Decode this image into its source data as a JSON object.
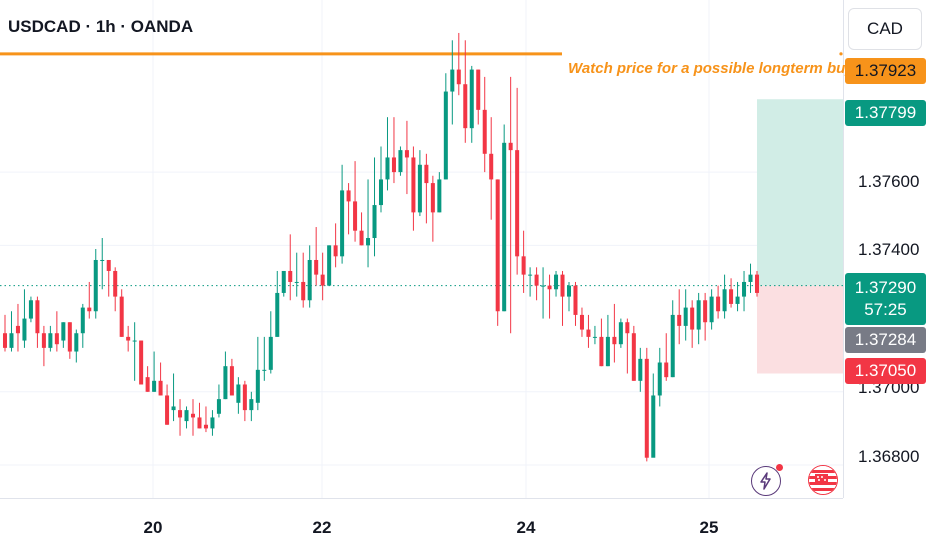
{
  "header": {
    "symbol_line": "USDCAD · 1h · OANDA",
    "currency_button": "CAD"
  },
  "annotation": {
    "text": "Watch price for a possible longterm buy"
  },
  "price_tags": {
    "orange": "1.37923",
    "target": "1.37799",
    "current": "1.37290",
    "countdown": "57:25",
    "gray": "1.37284",
    "stop": "1.37050"
  },
  "colors": {
    "up": "#089981",
    "down": "#f23645",
    "accent": "#f7931a",
    "target_zone": "#d1ede6",
    "stop_zone": "#fbdfe1",
    "gray_tag": "#787b86"
  },
  "chart_data": {
    "type": "candlestick",
    "title": "USDCAD · 1h · OANDA",
    "ylim": [
      1.3671,
      1.3807
    ],
    "yticks": [
      "1.36800",
      "1.37000",
      "1.37400",
      "1.37600"
    ],
    "xticks": [
      "20",
      "22",
      "24",
      "25"
    ],
    "horizontal_line": {
      "price": 1.37923,
      "label": "Watch price for a possible longterm buy"
    },
    "position": {
      "type": "long",
      "entry": 1.3729,
      "target": 1.37799,
      "stop": 1.3705
    },
    "last_price": 1.3729,
    "candles": [
      [
        1.3716,
        1.3721,
        1.3712,
        1.3711
      ],
      [
        1.3712,
        1.3722,
        1.3716,
        1.3711
      ],
      [
        1.3718,
        1.3724,
        1.3716,
        1.3711
      ],
      [
        1.3714,
        1.3728,
        1.372,
        1.3712
      ],
      [
        1.372,
        1.3726,
        1.3725,
        1.3719
      ],
      [
        1.3725,
        1.3726,
        1.3716,
        1.3712
      ],
      [
        1.3716,
        1.3718,
        1.3712,
        1.3707
      ],
      [
        1.3712,
        1.3718,
        1.3716,
        1.3711
      ],
      [
        1.3716,
        1.3722,
        1.3713,
        1.3711
      ],
      [
        1.3714,
        1.3719,
        1.3719,
        1.3712
      ],
      [
        1.3719,
        1.3719,
        1.3711,
        1.3709
      ],
      [
        1.3711,
        1.3717,
        1.3716,
        1.3708
      ],
      [
        1.3716,
        1.3724,
        1.3723,
        1.3712
      ],
      [
        1.3723,
        1.373,
        1.3722,
        1.372
      ],
      [
        1.3722,
        1.3739,
        1.3736,
        1.372
      ],
      [
        1.3736,
        1.3742,
        1.3736,
        1.3728
      ],
      [
        1.3736,
        1.3736,
        1.3733,
        1.3726
      ],
      [
        1.3733,
        1.3734,
        1.3726,
        1.3722
      ],
      [
        1.3726,
        1.3728,
        1.3715,
        1.3715
      ],
      [
        1.3715,
        1.3718,
        1.3714,
        1.3711
      ],
      [
        1.3714,
        1.3719,
        1.3714,
        1.3703
      ],
      [
        1.3714,
        1.3714,
        1.3702,
        1.3702
      ],
      [
        1.3704,
        1.3707,
        1.37,
        1.37
      ],
      [
        1.37,
        1.3711,
        1.3703,
        1.37
      ],
      [
        1.3703,
        1.3708,
        1.3699,
        1.3699
      ],
      [
        1.3699,
        1.3702,
        1.3691,
        1.3691
      ],
      [
        1.3695,
        1.3705,
        1.3696,
        1.3692
      ],
      [
        1.3695,
        1.3698,
        1.3693,
        1.3688
      ],
      [
        1.3692,
        1.3696,
        1.3695,
        1.369
      ],
      [
        1.3694,
        1.3698,
        1.3693,
        1.3688
      ],
      [
        1.3693,
        1.3697,
        1.369,
        1.369
      ],
      [
        1.3691,
        1.3696,
        1.369,
        1.3689
      ],
      [
        1.369,
        1.3695,
        1.3693,
        1.3688
      ],
      [
        1.3694,
        1.3702,
        1.3698,
        1.3693
      ],
      [
        1.3698,
        1.3711,
        1.3707,
        1.3698
      ],
      [
        1.3707,
        1.3709,
        1.3699,
        1.3699
      ],
      [
        1.3697,
        1.3704,
        1.3702,
        1.3694
      ],
      [
        1.3702,
        1.3703,
        1.3695,
        1.3692
      ],
      [
        1.3695,
        1.37,
        1.3698,
        1.3692
      ],
      [
        1.3697,
        1.3715,
        1.3706,
        1.3695
      ],
      [
        1.3706,
        1.3715,
        1.3706,
        1.3703
      ],
      [
        1.3706,
        1.3722,
        1.3715,
        1.3705
      ],
      [
        1.3715,
        1.3733,
        1.3727,
        1.3715
      ],
      [
        1.3727,
        1.3733,
        1.3733,
        1.3726
      ],
      [
        1.3733,
        1.3743,
        1.373,
        1.3725
      ],
      [
        1.373,
        1.3738,
        1.373,
        1.3726
      ],
      [
        1.373,
        1.3738,
        1.3725,
        1.3723
      ],
      [
        1.3725,
        1.374,
        1.3736,
        1.3723
      ],
      [
        1.3736,
        1.3745,
        1.3732,
        1.3729
      ],
      [
        1.3732,
        1.3738,
        1.3729,
        1.3725
      ],
      [
        1.3729,
        1.374,
        1.374,
        1.3729
      ],
      [
        1.374,
        1.3746,
        1.3737,
        1.3734
      ],
      [
        1.3737,
        1.3762,
        1.3755,
        1.3735
      ],
      [
        1.3755,
        1.3757,
        1.3752,
        1.3743
      ],
      [
        1.3752,
        1.3763,
        1.3744,
        1.3741
      ],
      [
        1.3744,
        1.3749,
        1.374,
        1.374
      ],
      [
        1.374,
        1.3758,
        1.3742,
        1.3734
      ],
      [
        1.3742,
        1.3764,
        1.3751,
        1.3737
      ],
      [
        1.3751,
        1.3767,
        1.3758,
        1.3749
      ],
      [
        1.3758,
        1.3775,
        1.3764,
        1.3755
      ],
      [
        1.3764,
        1.3775,
        1.376,
        1.3757
      ],
      [
        1.376,
        1.3767,
        1.3766,
        1.3759
      ],
      [
        1.3766,
        1.3774,
        1.3764,
        1.3754
      ],
      [
        1.3764,
        1.3767,
        1.3749,
        1.3744
      ],
      [
        1.3749,
        1.3766,
        1.3762,
        1.3748
      ],
      [
        1.3762,
        1.3765,
        1.3757,
        1.3746
      ],
      [
        1.3757,
        1.3759,
        1.3749,
        1.3741
      ],
      [
        1.3749,
        1.376,
        1.3758,
        1.3749
      ],
      [
        1.3758,
        1.3787,
        1.3782,
        1.3758
      ],
      [
        1.3782,
        1.3796,
        1.3788,
        1.3773
      ],
      [
        1.3788,
        1.3798,
        1.3784,
        1.3781
      ],
      [
        1.3784,
        1.3796,
        1.3772,
        1.3768
      ],
      [
        1.3772,
        1.3789,
        1.3788,
        1.3768
      ],
      [
        1.3788,
        1.3788,
        1.3777,
        1.3773
      ],
      [
        1.3777,
        1.3786,
        1.3765,
        1.376
      ],
      [
        1.3765,
        1.3775,
        1.3758,
        1.3747
      ],
      [
        1.3758,
        1.3758,
        1.3722,
        1.3718
      ],
      [
        1.3722,
        1.3773,
        1.3768,
        1.3722
      ],
      [
        1.3768,
        1.3786,
        1.3766,
        1.3716
      ],
      [
        1.3766,
        1.3783,
        1.3737,
        1.3732
      ],
      [
        1.3737,
        1.3744,
        1.3732,
        1.3727
      ],
      [
        1.3732,
        1.3734,
        1.3732,
        1.3726
      ],
      [
        1.3732,
        1.3734,
        1.3729,
        1.3725
      ],
      [
        1.3729,
        1.3734,
        1.3729,
        1.372
      ],
      [
        1.3729,
        1.3732,
        1.3728,
        1.372
      ],
      [
        1.3728,
        1.3733,
        1.3732,
        1.3726
      ],
      [
        1.3732,
        1.3733,
        1.3726,
        1.3718
      ],
      [
        1.3726,
        1.373,
        1.3729,
        1.3722
      ],
      [
        1.3729,
        1.373,
        1.3721,
        1.3718
      ],
      [
        1.3721,
        1.3723,
        1.3717,
        1.3715
      ],
      [
        1.3717,
        1.3721,
        1.3715,
        1.3712
      ],
      [
        1.3715,
        1.3718,
        1.3715,
        1.3713
      ],
      [
        1.3715,
        1.372,
        1.3707,
        1.3707
      ],
      [
        1.3707,
        1.3721,
        1.3715,
        1.3707
      ],
      [
        1.3715,
        1.3724,
        1.3713,
        1.3708
      ],
      [
        1.3713,
        1.372,
        1.3719,
        1.3712
      ],
      [
        1.3719,
        1.372,
        1.3716,
        1.3705
      ],
      [
        1.3716,
        1.3718,
        1.3703,
        1.3703
      ],
      [
        1.3703,
        1.3712,
        1.3709,
        1.37
      ],
      [
        1.3709,
        1.3712,
        1.3682,
        1.3681
      ],
      [
        1.3682,
        1.3705,
        1.3699,
        1.3692
      ],
      [
        1.3699,
        1.3712,
        1.3708,
        1.3696
      ],
      [
        1.3708,
        1.3716,
        1.3704,
        1.3703
      ],
      [
        1.3704,
        1.3725,
        1.3721,
        1.3704
      ],
      [
        1.3721,
        1.3728,
        1.3718,
        1.3713
      ],
      [
        1.3718,
        1.3728,
        1.3723,
        1.3714
      ],
      [
        1.3723,
        1.3725,
        1.3717,
        1.3712
      ],
      [
        1.3717,
        1.3727,
        1.3725,
        1.3713
      ],
      [
        1.3725,
        1.3727,
        1.3719,
        1.3714
      ],
      [
        1.3719,
        1.3728,
        1.3726,
        1.3717
      ],
      [
        1.3726,
        1.3729,
        1.3722,
        1.372
      ],
      [
        1.3722,
        1.3732,
        1.3728,
        1.372
      ],
      [
        1.3728,
        1.3731,
        1.3724,
        1.3723
      ],
      [
        1.3724,
        1.373,
        1.3726,
        1.3722
      ],
      [
        1.3726,
        1.3733,
        1.373,
        1.3722
      ],
      [
        1.373,
        1.3735,
        1.3732,
        1.3727
      ],
      [
        1.3732,
        1.3733,
        1.3727,
        1.3726
      ]
    ]
  }
}
